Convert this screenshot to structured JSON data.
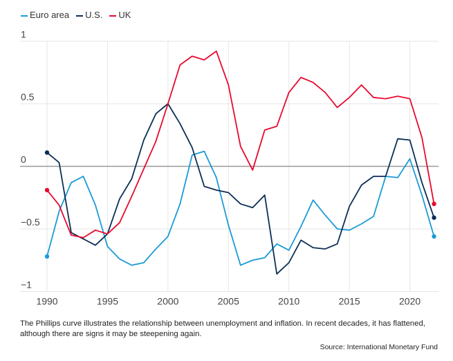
{
  "chart_data": {
    "type": "line",
    "title": "",
    "xlabel": "",
    "ylabel": "",
    "xlim": [
      1988.7,
      2022.6
    ],
    "ylim": [
      -1,
      1
    ],
    "yticks": [
      {
        "v": 1,
        "label": "1"
      },
      {
        "v": 0.5,
        "label": "0.5"
      },
      {
        "v": 0,
        "label": "0"
      },
      {
        "v": -0.5,
        "label": "−0.5"
      },
      {
        "v": -1,
        "label": "−1"
      }
    ],
    "xticks": [
      1990,
      1995,
      2000,
      2005,
      2010,
      2015,
      2020
    ],
    "legend_position": "top-left",
    "x": [
      1990,
      1991,
      1992,
      1993,
      1994,
      1995,
      1996,
      1997,
      1998,
      1999,
      2000,
      2001,
      2002,
      2003,
      2004,
      2005,
      2006,
      2007,
      2008,
      2009,
      2010,
      2011,
      2012,
      2013,
      2014,
      2015,
      2016,
      2017,
      2018,
      2019,
      2020,
      2021,
      2022
    ],
    "series": [
      {
        "name": "Euro area",
        "color": "#1a9ad6",
        "values": [
          -0.72,
          -0.36,
          -0.13,
          -0.08,
          -0.31,
          -0.64,
          -0.74,
          -0.79,
          -0.77,
          -0.66,
          -0.56,
          -0.3,
          0.09,
          0.12,
          -0.09,
          -0.47,
          -0.79,
          -0.75,
          -0.73,
          -0.62,
          -0.67,
          -0.48,
          -0.27,
          -0.39,
          -0.5,
          -0.51,
          -0.46,
          -0.4,
          -0.08,
          -0.09,
          0.06,
          -0.23,
          -0.56
        ]
      },
      {
        "name": "U.S.",
        "color": "#0b2e55",
        "values": [
          0.11,
          0.03,
          -0.53,
          -0.58,
          -0.63,
          -0.54,
          -0.26,
          -0.1,
          0.21,
          0.42,
          0.5,
          0.34,
          0.15,
          -0.16,
          -0.19,
          -0.21,
          -0.3,
          -0.33,
          -0.23,
          -0.86,
          -0.77,
          -0.59,
          -0.65,
          -0.66,
          -0.62,
          -0.32,
          -0.15,
          -0.08,
          -0.08,
          0.22,
          0.21,
          -0.13,
          -0.41
        ]
      },
      {
        "name": "UK",
        "color": "#e8092e",
        "values": [
          -0.19,
          -0.31,
          -0.55,
          -0.57,
          -0.51,
          -0.54,
          -0.45,
          -0.24,
          -0.02,
          0.2,
          0.5,
          0.81,
          0.88,
          0.85,
          0.92,
          0.65,
          0.16,
          -0.03,
          0.29,
          0.32,
          0.59,
          0.71,
          0.67,
          0.59,
          0.47,
          0.55,
          0.65,
          0.55,
          0.54,
          0.56,
          0.54,
          0.23,
          -0.3
        ]
      }
    ]
  },
  "caption": "The Phillips curve illustrates the relationship between unemployment and inflation. In recent decades, it has flattened, although there are signs it may be steepening again.",
  "source": "Source: International Monetary Fund"
}
